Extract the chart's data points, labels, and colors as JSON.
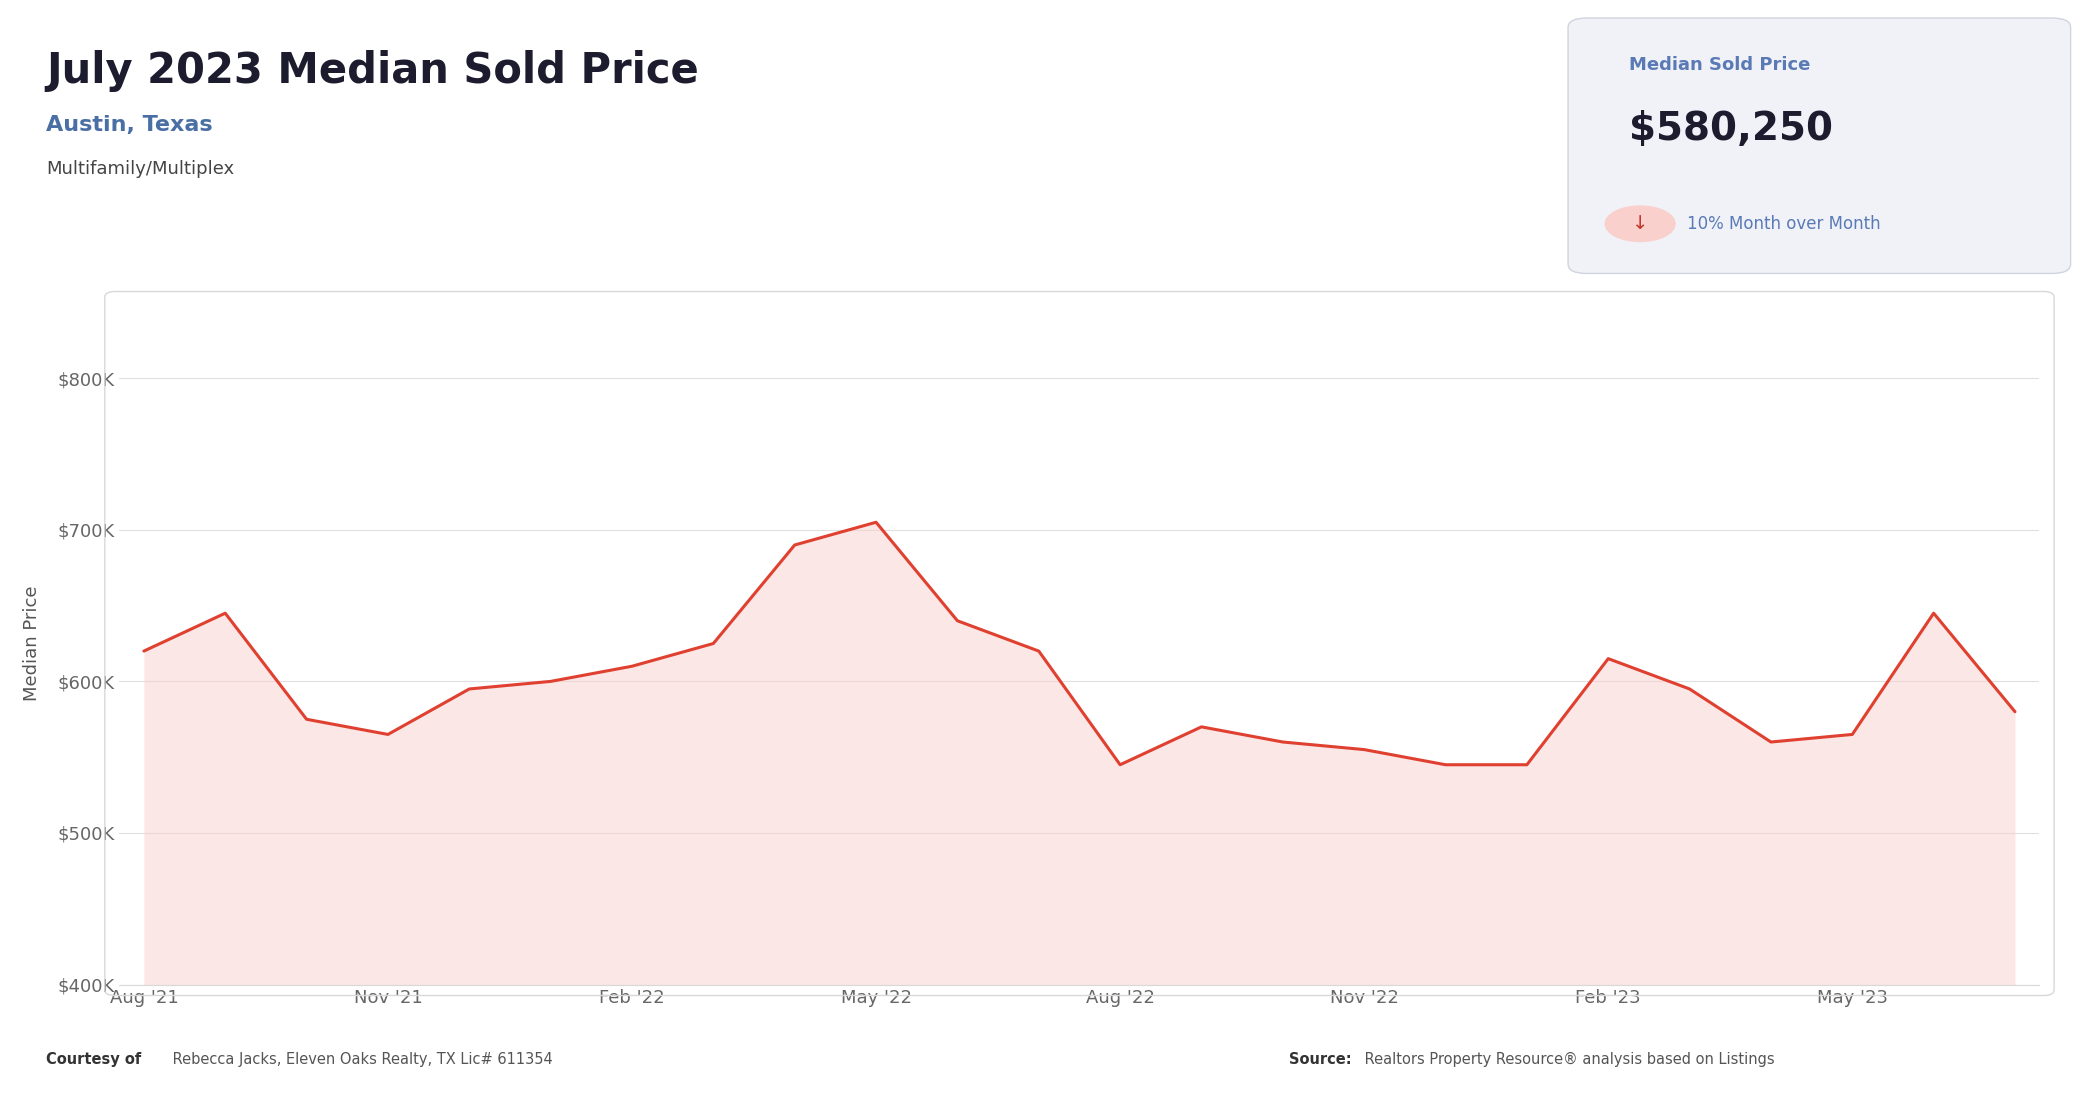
{
  "title": "July 2023 Median Sold Price",
  "subtitle": "Austin, Texas",
  "subtitle2": "Multifamily/Multiplex",
  "card_label": "Median Sold Price",
  "card_value": "$580,250",
  "card_change": "10% Month over Month",
  "ylabel": "Median Price",
  "x_labels": [
    "Aug '21",
    "Nov '21",
    "Feb '22",
    "May '22",
    "Aug '22",
    "Nov '22",
    "Feb '23",
    "May '23"
  ],
  "x_indices": [
    0,
    3,
    6,
    9,
    12,
    15,
    18,
    21
  ],
  "data_points": [
    620000,
    645000,
    575000,
    565000,
    595000,
    600000,
    610000,
    625000,
    690000,
    705000,
    640000,
    620000,
    545000,
    570000,
    560000,
    555000,
    545000,
    545000,
    615000,
    595000,
    560000,
    565000,
    645000,
    580000
  ],
  "line_color": "#e04030",
  "fill_color": "#f9d0cc",
  "fill_alpha": 0.5,
  "bg_color": "#ffffff",
  "chart_bg": "#ffffff",
  "grid_color": "#e0e0e0",
  "ylim": [
    400000,
    850000
  ],
  "yticks": [
    400000,
    500000,
    600000,
    700000,
    800000
  ],
  "ytick_labels": [
    "$400K",
    "$500K",
    "$600K",
    "$700K",
    "$800K"
  ],
  "title_color": "#1c1c2e",
  "subtitle_color": "#4a6fa5",
  "subtitle2_color": "#444444",
  "footer_left_bold": "Courtesy of",
  "footer_left_normal": " Rebecca Jacks, Eleven Oaks Realty, TX Lic# 611354",
  "footer_right_bold": "Source:",
  "footer_right_normal": " Realtors Property Resource® analysis based on Listings",
  "card_bg": "#f0f2f8",
  "card_label_color": "#5a7ab5",
  "card_value_color": "#1c1c2e",
  "card_change_color": "#c0392b",
  "card_change_text_color": "#5a7ab5",
  "chart_border_color": "#d8d8d8"
}
